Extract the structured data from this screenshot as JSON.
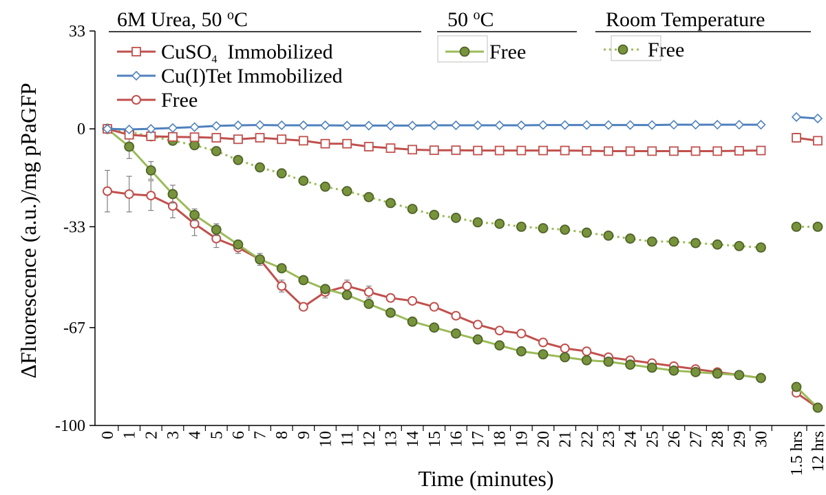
{
  "chart_data": {
    "type": "line",
    "ylabel": "ΔFluorescence (a.u.)/mg  pPaGFP",
    "xlabel": "Time (minutes)",
    "ylim": [
      -100,
      33
    ],
    "yticks": [
      33,
      0,
      -33,
      -67,
      -100
    ],
    "categories": [
      "0",
      "1",
      "2",
      "3",
      "4",
      "5",
      "6",
      "7",
      "8",
      "9",
      "10",
      "11",
      "12",
      "13",
      "14",
      "15",
      "16",
      "17",
      "18",
      "19",
      "20",
      "21",
      "22",
      "23",
      "24",
      "25",
      "26",
      "27",
      "28",
      "29",
      "30",
      "1.5 hrs",
      "12 hrs"
    ],
    "legend_groups": [
      {
        "title": "6M Urea, 50 ",
        "sup": "o",
        "title_end": "C",
        "series_refs": [
          0,
          1,
          2
        ]
      },
      {
        "title": "50 ",
        "sup": "o",
        "title_end": "C",
        "series_refs": [
          3
        ]
      },
      {
        "title": "Room Temperature",
        "sup": "",
        "title_end": "",
        "series_refs": [
          4
        ]
      }
    ],
    "series": [
      {
        "name": "CuSO",
        "name_sub": "4",
        "name_rest": "  Immobilized",
        "color": "#c0504d",
        "marker": "square",
        "line": "solid",
        "values": [
          0,
          -2,
          -2.5,
          -2.7,
          -2.8,
          -3,
          -3.5,
          -3,
          -3.5,
          -4,
          -5,
          -5,
          -6,
          -6.5,
          -7,
          -7.2,
          -7.2,
          -7.3,
          -7.3,
          -7.3,
          -7.3,
          -7.3,
          -7.4,
          -7.5,
          -7.5,
          -7.5,
          -7.5,
          -7.5,
          -7.5,
          -7.4,
          -7.3,
          -3,
          -4
        ],
        "error": [
          0,
          1,
          1,
          1,
          1,
          1,
          1,
          1,
          1,
          1,
          1,
          1,
          1,
          1,
          1,
          1,
          1,
          1,
          1,
          1,
          1,
          1,
          1,
          1,
          1,
          1,
          1,
          1,
          1,
          1,
          1,
          1.5,
          0
        ]
      },
      {
        "name": "Cu(I)Tet  Immobilized",
        "name_sub": "",
        "name_rest": "",
        "color": "#4f81bd",
        "marker": "diamond",
        "line": "solid",
        "values": [
          0,
          -0.2,
          0,
          0.3,
          0.6,
          1,
          1.2,
          1.3,
          1.2,
          1.2,
          1.2,
          1.1,
          1.1,
          1.1,
          1.1,
          1.2,
          1.2,
          1.2,
          1.2,
          1.2,
          1.3,
          1.3,
          1.3,
          1.3,
          1.3,
          1.3,
          1.4,
          1.4,
          1.4,
          1.4,
          1.4,
          4,
          3.5
        ],
        "error": []
      },
      {
        "name": "Free",
        "name_sub": "",
        "name_rest": "",
        "color": "#c0504d",
        "marker": "circle-open",
        "line": "solid",
        "values": [
          -21,
          -22,
          -22.5,
          -26,
          -32,
          -37,
          -40,
          -44,
          -53,
          -60,
          -55,
          -53,
          -55,
          -57,
          -58,
          -60,
          -63,
          -66,
          -68,
          -69,
          -72,
          -74,
          -75,
          -77,
          -78,
          -79,
          -80,
          -81,
          -82,
          -83,
          -84,
          -89,
          -94
        ],
        "error": [
          7,
          6,
          5,
          4,
          4,
          3,
          2,
          2,
          2,
          0,
          2,
          2,
          2,
          1,
          1,
          1,
          1,
          1,
          1,
          1,
          1,
          1,
          1,
          1,
          1,
          1,
          1,
          1,
          1,
          1,
          1,
          1,
          1
        ]
      },
      {
        "name": "Free",
        "name_sub": "",
        "name_rest": "",
        "color": "#9bbb59",
        "marker_fill": "#77933c",
        "marker": "circle-filled",
        "line": "solid",
        "values": [
          0,
          -6,
          -14,
          -22,
          -29,
          -34,
          -39,
          -44,
          -47,
          -51,
          -54,
          -56,
          -59,
          -62,
          -65,
          -67,
          -69,
          -71,
          -73,
          -75,
          -76,
          -77,
          -78,
          -78.5,
          -79.5,
          -80.5,
          -81.5,
          -82,
          -82.5,
          -83,
          -84,
          -87,
          -94
        ],
        "error": [
          0,
          4,
          3,
          3,
          2,
          2,
          1,
          1,
          1,
          1,
          1,
          1,
          1,
          1,
          1,
          1,
          1,
          1,
          1,
          1,
          1,
          1,
          1,
          1,
          1,
          1,
          1,
          1,
          1,
          1,
          1,
          1,
          1
        ]
      },
      {
        "name": "Free",
        "name_sub": "",
        "name_rest": "",
        "color": "#9bbb59",
        "marker_fill": "#77933c",
        "marker": "circle-filled",
        "line": "dotted",
        "values": [
          0,
          -1,
          -2.5,
          -4,
          -5.5,
          -7.5,
          -10.5,
          -13,
          -15,
          -17.5,
          -19.5,
          -21,
          -23,
          -25,
          -27,
          -29,
          -30,
          -31.5,
          -32,
          -33,
          -33.5,
          -34,
          -35,
          -36,
          -37,
          -38,
          -38,
          -38.5,
          -39,
          -39.5,
          -40,
          -33,
          -33
        ],
        "error": [
          0,
          0.5,
          0.5,
          0.5,
          0.5,
          0.5,
          0.5,
          0.5,
          0.5,
          0.5,
          0.5,
          0.5,
          0.5,
          0.5,
          0.5,
          0.5,
          0.5,
          0.5,
          0.5,
          0.5,
          0.5,
          0.5,
          0.5,
          0.5,
          0.5,
          0.5,
          0.5,
          0.5,
          0.5,
          0.5,
          0.5,
          0.5,
          0.5
        ]
      }
    ]
  }
}
